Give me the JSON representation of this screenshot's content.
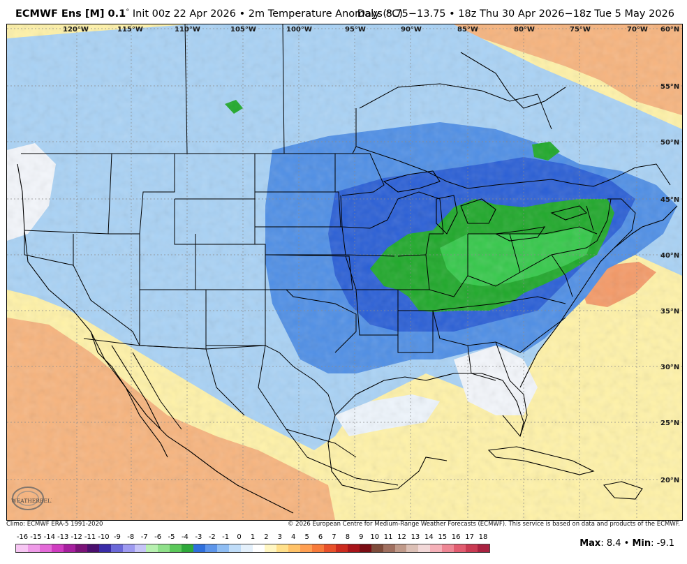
{
  "header": {
    "model": "ECMWF Ens [M] 0.1",
    "degree": "°",
    "init": " Init 00z 22 Apr 2026 • 2m Temperature Anomaly (°C)",
    "valid": "Days 8.75−13.75 • 18z Thu 30 Apr 2026−18z Tue 5 May 2026"
  },
  "map": {
    "longitude_labels": [
      "120°W",
      "115°W",
      "110°W",
      "105°W",
      "100°W",
      "95°W",
      "90°W",
      "85°W",
      "80°W",
      "75°W",
      "70°W"
    ],
    "latitude_labels": [
      "60°N",
      "55°N",
      "50°N",
      "45°N",
      "40°N",
      "35°N",
      "30°N",
      "25°N",
      "20°N"
    ],
    "logo_text": "WEATHERBELL",
    "colors": {
      "ocean_warm": "#fff2a8",
      "land_warm": "#f7b47e",
      "cold_light": "#a9d2f5",
      "cold_mid": "#4f8fe6",
      "cold_deep": "#2a5fd6",
      "cold_extreme": "#1fa82a",
      "neutral": "#f3f6fb",
      "borders": "#000000"
    }
  },
  "footer": {
    "climo": "Climo: ECMWF ERA-5 1991-2020",
    "copyright": "© 2026 European Centre for Medium-Range Weather Forecasts (ECMWF). This service is based on data and products of the ECMWF."
  },
  "colorbar": {
    "labels": [
      "-16",
      "-15",
      "-14",
      "-13",
      "-12",
      "-11",
      "-10",
      "-9",
      "-8",
      "-7",
      "-6",
      "-5",
      "-4",
      "-3",
      "-2",
      "-1",
      "0",
      "1",
      "2",
      "3",
      "4",
      "5",
      "6",
      "7",
      "8",
      "9",
      "10",
      "11",
      "12",
      "13",
      "14",
      "15",
      "16",
      "17",
      "18"
    ],
    "colors": [
      "#f7c6f3",
      "#ef9be8",
      "#e46ad8",
      "#cf3cc0",
      "#a61f9e",
      "#7a1278",
      "#4b0f6e",
      "#3a2ca8",
      "#6b68d8",
      "#9e9af0",
      "#c6c4f7",
      "#b7f0b0",
      "#8fe08a",
      "#5bc85a",
      "#2ea83a",
      "#2f6fdc",
      "#5d95ea",
      "#8fbdf3",
      "#bfdcf8",
      "#e4f0fb",
      "#ffffff",
      "#fff6c2",
      "#ffe08a",
      "#ffc268",
      "#ff9f52",
      "#f77a3a",
      "#e8502a",
      "#cc2a1e",
      "#a8141a",
      "#7a0d14",
      "#7e4b3a",
      "#a07060",
      "#c09a8a",
      "#dcc0b6",
      "#f2d8d8",
      "#f5b0b8",
      "#ee8694",
      "#e25c70",
      "#c93a52",
      "#a82240"
    ]
  },
  "stats": {
    "max_label": "Max",
    "max_value": ": 8.4 • ",
    "min_label": "Min",
    "min_value": ": -9.1"
  }
}
